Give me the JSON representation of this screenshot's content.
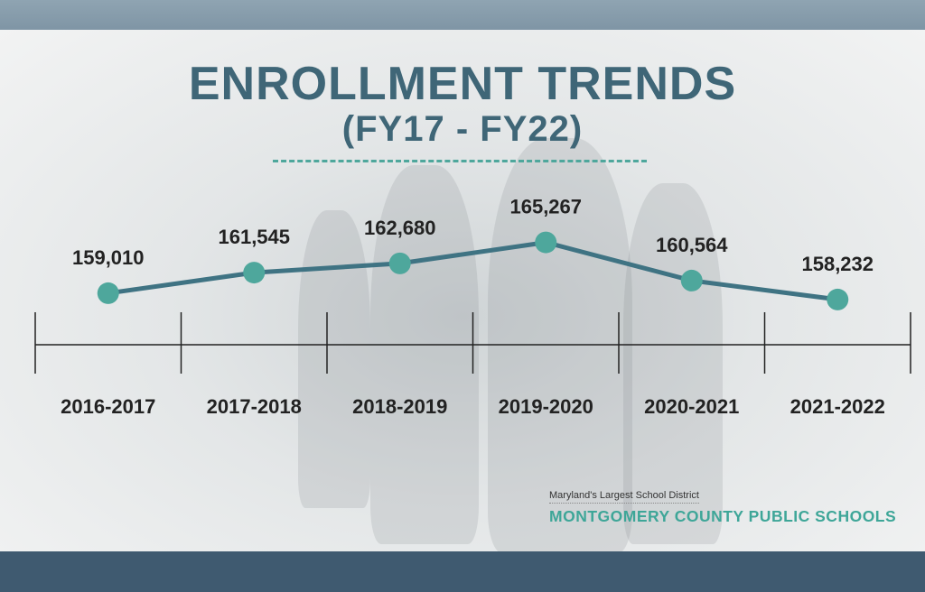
{
  "slide": {
    "title": "ENROLLMENT TRENDS",
    "subtitle": "(FY17 - FY22)",
    "brand_tagline": "Maryland's Largest School District",
    "brand_name": "MONTGOMERY COUNTY PUBLIC SCHOOLS"
  },
  "colors": {
    "title": "#3f6677",
    "line": "#3f7383",
    "marker": "#4ea79c",
    "brand": "#3ea698",
    "bars": "#3f5a70"
  },
  "chart_data": {
    "type": "line",
    "categories": [
      "2016-2017",
      "2017-2018",
      "2018-2019",
      "2019-2020",
      "2020-2021",
      "2021-2022"
    ],
    "values": [
      159010,
      161545,
      162680,
      165267,
      160564,
      158232
    ],
    "data_labels": [
      "159,010",
      "161,545",
      "162,680",
      "165,267",
      "160,564",
      "158,232"
    ],
    "title": "ENROLLMENT TRENDS",
    "subtitle": "(FY17 - FY22)",
    "xlabel": "",
    "ylabel": "",
    "ylim": [
      152000,
      167000
    ],
    "grid": false,
    "legend": "none"
  }
}
